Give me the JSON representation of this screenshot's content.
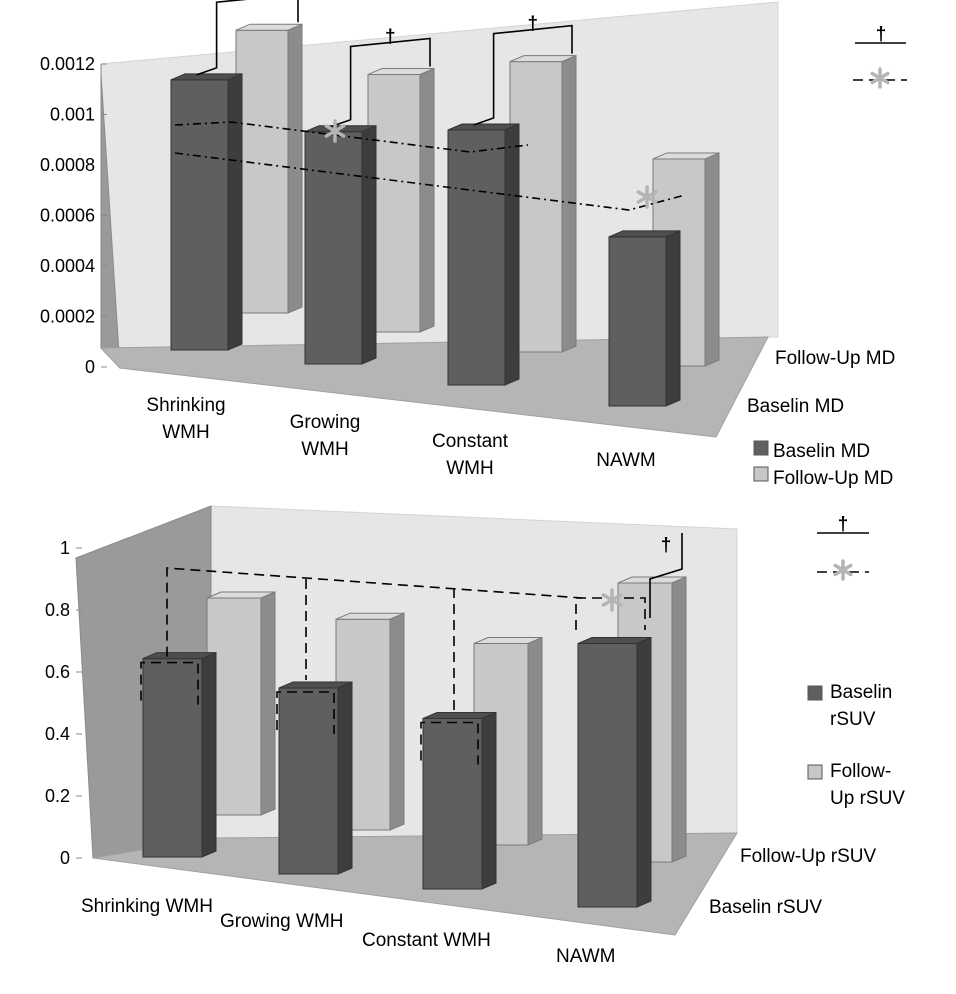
{
  "chart_data": [
    {
      "type": "bar",
      "style": "3d",
      "categories": [
        "Shrinking WMH",
        "Growing WMH",
        "Constant WMH",
        "NAWM"
      ],
      "category_labels": [
        [
          "Shrinking",
          "WMH"
        ],
        [
          "Growing",
          "WMH"
        ],
        [
          "Constant",
          "WMH"
        ],
        [
          "NAWM"
        ]
      ],
      "series": [
        {
          "name": "Baselin MD",
          "values": [
            0.00107,
            0.00092,
            0.00101,
            0.00067
          ]
        },
        {
          "name": "Follow-Up MD",
          "values": [
            0.00112,
            0.00102,
            0.00115,
            0.00082
          ]
        }
      ],
      "depth_labels": [
        "Follow-Up MD",
        "Baselin MD"
      ],
      "legend_labels": [
        "Baselin MD",
        "Follow-Up MD"
      ],
      "yticks": [
        "0",
        "0.0002",
        "0.0004",
        "0.0006",
        "0.0008",
        "0.001",
        "0.0012"
      ],
      "ylim": [
        0,
        0.0012
      ],
      "significance_legend": {
        "solid": "†",
        "dashed": "*"
      },
      "colors": {
        "baseline": "#5f5f5f",
        "followup": "#c8c8c8"
      }
    },
    {
      "type": "bar",
      "style": "3d",
      "categories": [
        "Shrinking WMH",
        "Growing WMH",
        "Constant WMH",
        "NAWM"
      ],
      "category_labels": [
        [
          "Shrinking WMH"
        ],
        [
          "Growing WMH"
        ],
        [
          "Constant WMH"
        ],
        [
          "NAWM"
        ]
      ],
      "series": [
        {
          "name": "Baselin rSUV",
          "values": [
            0.64,
            0.6,
            0.55,
            0.85
          ]
        },
        {
          "name": "Follow-Up rSUV",
          "values": [
            0.7,
            0.68,
            0.65,
            0.9
          ]
        }
      ],
      "depth_labels": [
        "Follow-Up rSUV",
        "Baselin rSUV"
      ],
      "legend_labels": [
        [
          "Baselin",
          "rSUV"
        ],
        [
          "Follow-",
          "Up rSUV"
        ]
      ],
      "yticks": [
        "0",
        "0.2",
        "0.4",
        "0.6",
        "0.8",
        "1"
      ],
      "ylim": [
        0,
        1
      ],
      "significance_legend": {
        "solid": "†",
        "dashed": "*"
      },
      "colors": {
        "baseline": "#5f5f5f",
        "followup": "#c8c8c8"
      }
    }
  ]
}
